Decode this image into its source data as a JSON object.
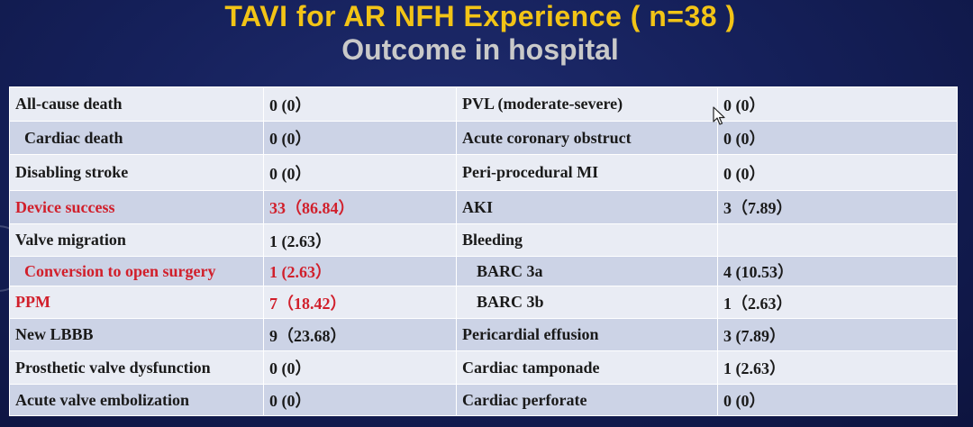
{
  "title_line1": "TAVI for AR NFH Experience ( n=38 )",
  "title_line2": "Outcome in hospital",
  "colors": {
    "title": "#f2c416",
    "subtitle": "#c9c9c9",
    "highlight": "#d11f2b"
  },
  "rows": [
    {
      "l_label": "All-cause death",
      "l_value": "0 (0）",
      "r_label": "PVL (moderate-severe)",
      "r_value": "0 (0）"
    },
    {
      "l_label": "Cardiac death",
      "l_value": "0 (0）",
      "r_label": "Acute coronary obstruct",
      "r_value": "0 (0）"
    },
    {
      "l_label": "Disabling stroke",
      "l_value": "0 (0）",
      "r_label": "Peri-procedural MI",
      "r_value": "0 (0）"
    },
    {
      "l_label": "Device success",
      "l_value": "33（86.84）",
      "r_label": "AKI",
      "r_value": "3（7.89）"
    },
    {
      "l_label": "Valve migration",
      "l_value": "1 (2.63）",
      "r_label": "Bleeding",
      "r_value": ""
    },
    {
      "l_label": "Conversion to open surgery",
      "l_value": "1 (2.63）",
      "r_label": "BARC 3a",
      "r_value": "4 (10.53）"
    },
    {
      "l_label": "PPM",
      "l_value": "7（18.42）",
      "r_label": "BARC 3b",
      "r_value": "1（2.63）"
    },
    {
      "l_label": "New LBBB",
      "l_value": "9（23.68）",
      "r_label": "Pericardial effusion",
      "r_value": "3 (7.89）"
    },
    {
      "l_label": "Prosthetic valve dysfunction",
      "l_value": "0 (0）",
      "r_label": "Cardiac tamponade",
      "r_value": "1 (2.63）"
    },
    {
      "l_label": "Acute valve embolization",
      "l_value": "0 (0）",
      "r_label": "Cardiac perforate",
      "r_value": "0 (0）"
    }
  ]
}
